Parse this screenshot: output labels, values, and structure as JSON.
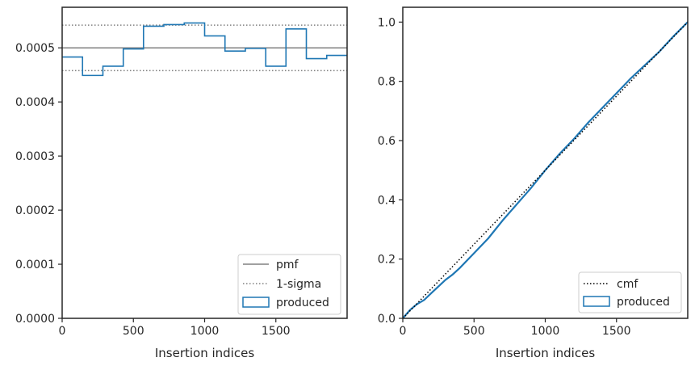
{
  "colors": {
    "axes": "#262626",
    "pmf": "#808080",
    "sigma": "#808080",
    "produced": "#1f77b4",
    "cmf": "#000000",
    "legend_border": "#cccccc"
  },
  "chart_data": [
    {
      "type": "step",
      "xlabel": "Insertion indices",
      "ylabel": "",
      "xlim": [
        0,
        2000
      ],
      "ylim": [
        0,
        0.000575
      ],
      "x_ticks": [
        0,
        500,
        1000,
        1500
      ],
      "x_tick_labels": [
        "0",
        "500",
        "1000",
        "1500"
      ],
      "y_ticks": [
        0,
        0.0001,
        0.0002,
        0.0003,
        0.0004,
        0.0005
      ],
      "y_tick_labels": [
        "0.0000",
        "0.0001",
        "0.0002",
        "0.0003",
        "0.0004",
        "0.0005"
      ],
      "pmf": 0.0005,
      "sigma_upper": 0.000542,
      "sigma_lower": 0.000458,
      "series": [
        {
          "name": "produced",
          "bin_edges": [
            0,
            143,
            286,
            429,
            571,
            714,
            857,
            1000,
            1143,
            1286,
            1429,
            1571,
            1714,
            1857,
            2000
          ],
          "values": [
            0.000483,
            0.000449,
            0.000466,
            0.000498,
            0.00054,
            0.000543,
            0.000546,
            0.000522,
            0.000494,
            0.000499,
            0.000466,
            0.000535,
            0.00048,
            0.000486
          ]
        }
      ],
      "legend": {
        "position": "lower right",
        "entries": [
          {
            "label": "pmf",
            "style": "line"
          },
          {
            "label": "1-sigma",
            "style": "dotted"
          },
          {
            "label": "produced",
            "style": "patch"
          }
        ]
      }
    },
    {
      "type": "line",
      "xlabel": "Insertion indices",
      "ylabel": "",
      "xlim": [
        0,
        2000
      ],
      "ylim": [
        0,
        1.05
      ],
      "x_ticks": [
        0,
        500,
        1000,
        1500
      ],
      "x_tick_labels": [
        "0",
        "500",
        "1000",
        "1500"
      ],
      "y_ticks": [
        0.0,
        0.2,
        0.4,
        0.6,
        0.8,
        1.0
      ],
      "y_tick_labels": [
        "0.0",
        "0.2",
        "0.4",
        "0.6",
        "0.8",
        "1.0"
      ],
      "series": [
        {
          "name": "cmf",
          "x": [
            0,
            2000
          ],
          "y": [
            0,
            1.0
          ]
        },
        {
          "name": "produced",
          "x": [
            0,
            50,
            100,
            150,
            200,
            300,
            350,
            400,
            500,
            600,
            700,
            800,
            900,
            1000,
            1100,
            1200,
            1300,
            1400,
            1500,
            1600,
            1700,
            1800,
            1900,
            2000
          ],
          "y": [
            0,
            0.028,
            0.048,
            0.062,
            0.085,
            0.13,
            0.148,
            0.17,
            0.22,
            0.27,
            0.33,
            0.385,
            0.44,
            0.5,
            0.555,
            0.605,
            0.66,
            0.71,
            0.76,
            0.81,
            0.855,
            0.9,
            0.952,
            1.0
          ]
        }
      ],
      "legend": {
        "position": "lower right",
        "entries": [
          {
            "label": "cmf",
            "style": "dotted"
          },
          {
            "label": "produced",
            "style": "patch"
          }
        ]
      }
    }
  ]
}
